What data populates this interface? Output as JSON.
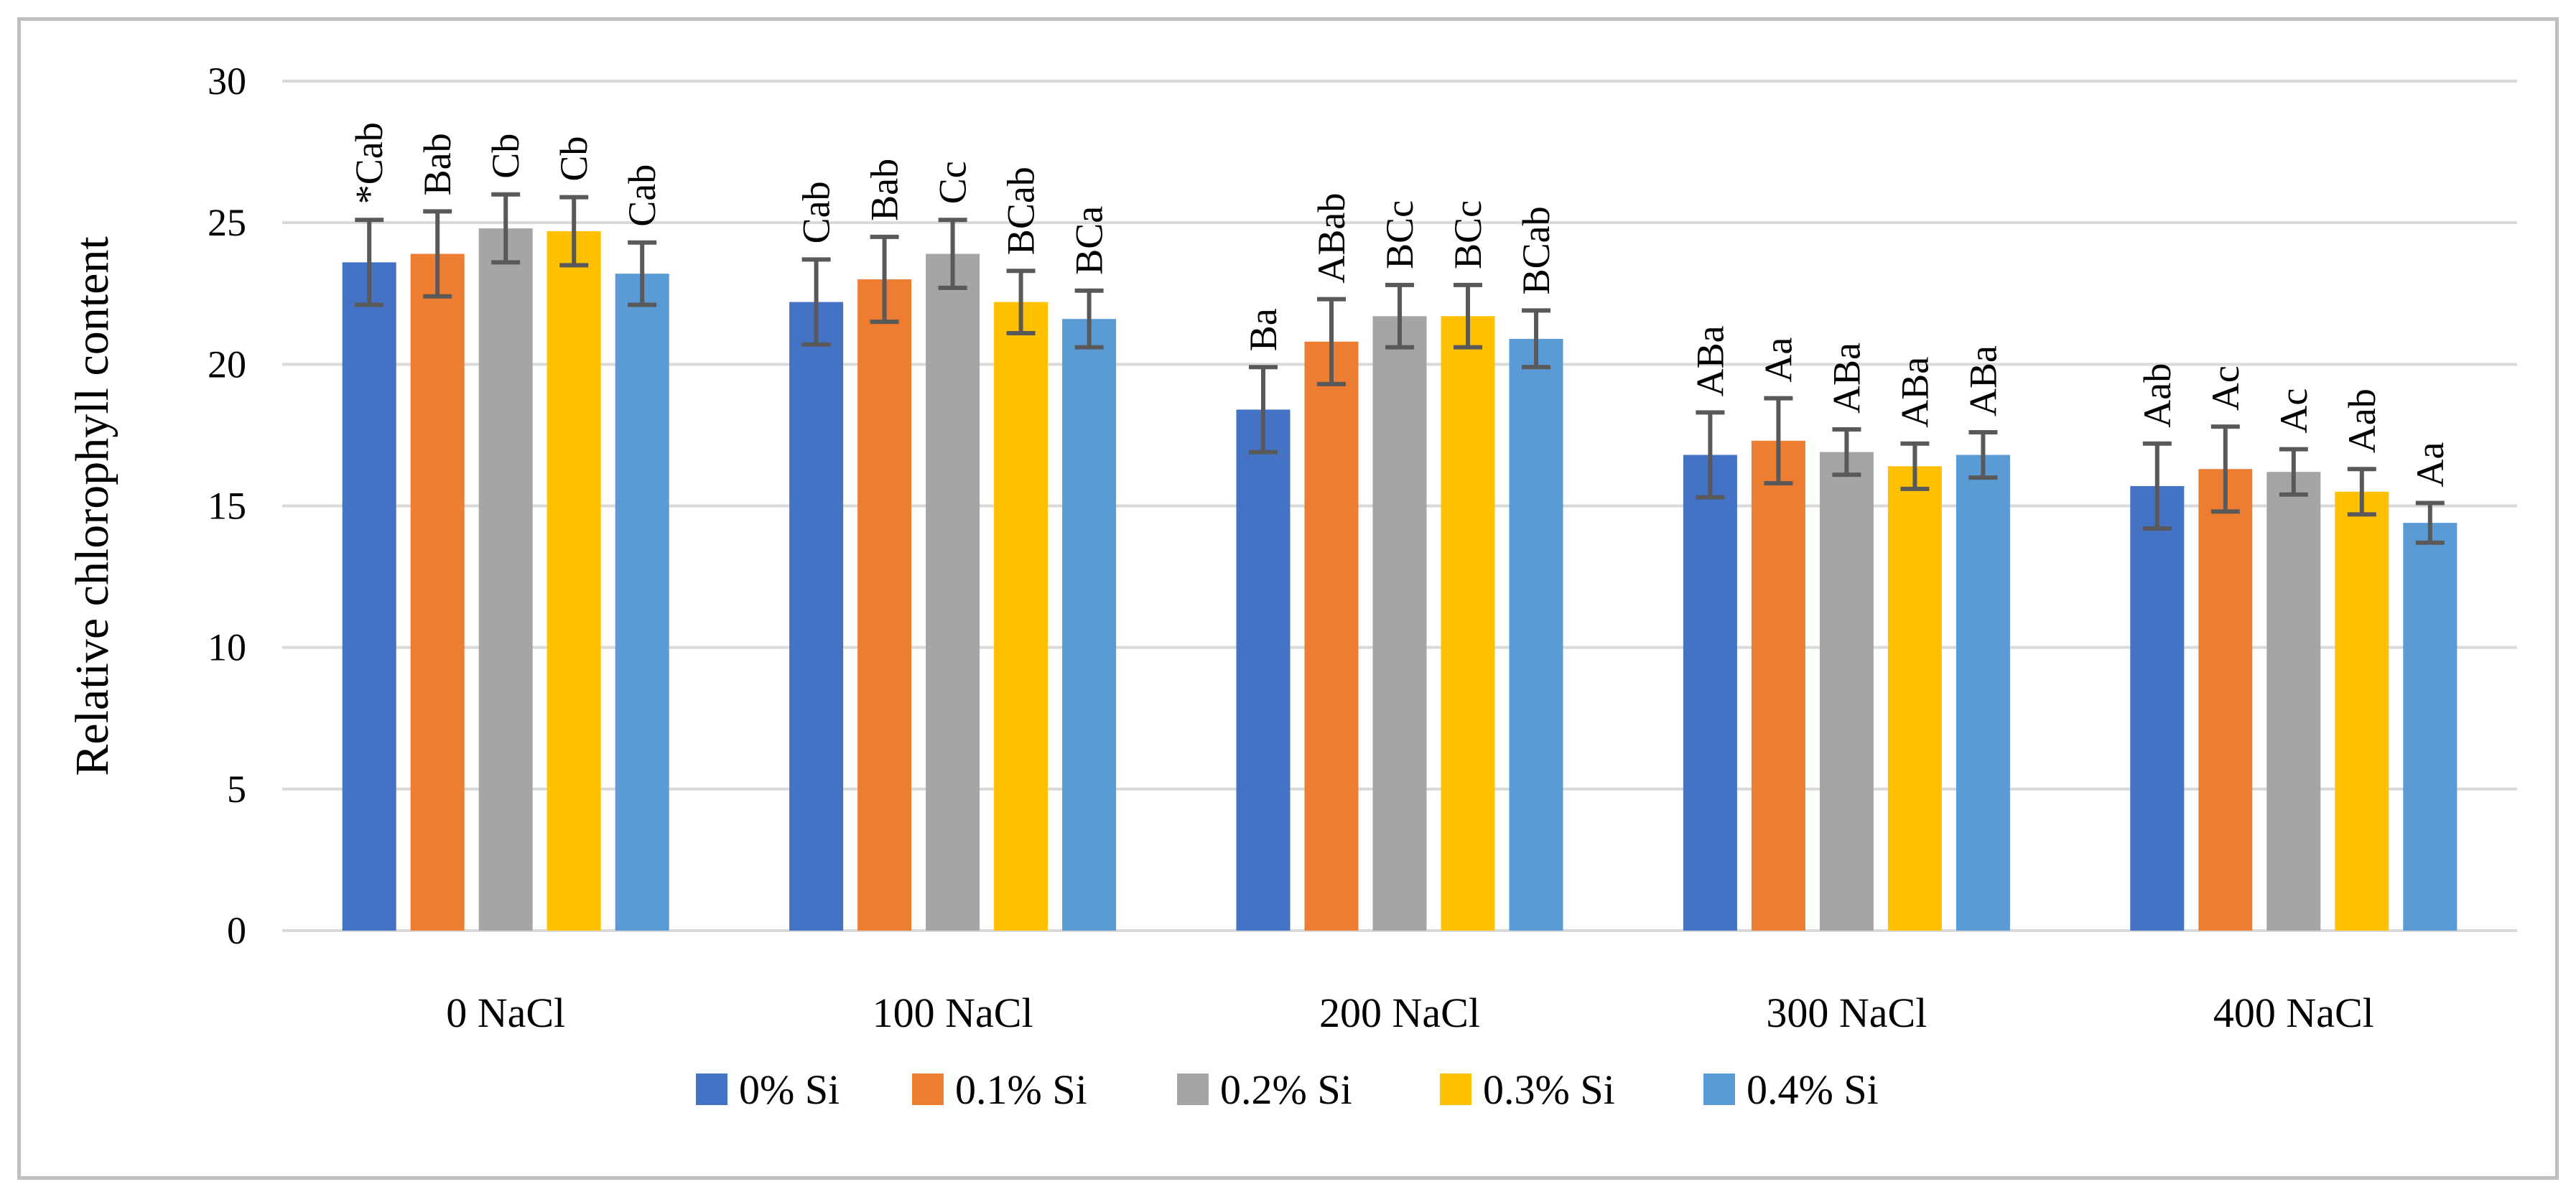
{
  "chart_data": {
    "type": "bar",
    "title": "",
    "xlabel": "",
    "ylabel": "Relative chlorophyll content",
    "ylim": [
      0,
      30
    ],
    "yticks": [
      0,
      5,
      10,
      15,
      20,
      25,
      30
    ],
    "grid": true,
    "legend_position": "bottom",
    "categories": [
      "0 NaCl",
      "100 NaCl",
      "200 NaCl",
      "300 NaCl",
      "400 NaCl"
    ],
    "series": [
      {
        "name": "0% Si",
        "color": "#4472C4",
        "values": [
          23.6,
          22.2,
          18.4,
          16.8,
          15.7
        ],
        "errors": [
          1.5,
          1.5,
          1.5,
          1.5,
          1.5
        ],
        "labels": [
          "*Cab",
          "Cab",
          "Ba",
          "ABa",
          "Aab"
        ]
      },
      {
        "name": "0.1% Si",
        "color": "#ED7D31",
        "values": [
          23.9,
          23.0,
          20.8,
          17.3,
          16.3
        ],
        "errors": [
          1.5,
          1.5,
          1.5,
          1.5,
          1.5
        ],
        "labels": [
          "Bab",
          "Bab",
          "ABab",
          "Aa",
          "Ac"
        ]
      },
      {
        "name": "0.2% Si",
        "color": "#A5A5A5",
        "values": [
          24.8,
          23.9,
          21.7,
          16.9,
          16.2
        ],
        "errors": [
          1.2,
          1.2,
          1.1,
          0.8,
          0.8
        ],
        "labels": [
          "Cb",
          "Cc",
          "BCc",
          "ABa",
          "Ac"
        ]
      },
      {
        "name": "0.3% Si",
        "color": "#FFC000",
        "values": [
          24.7,
          22.2,
          21.7,
          16.4,
          15.5
        ],
        "errors": [
          1.2,
          1.1,
          1.1,
          0.8,
          0.8
        ],
        "labels": [
          "Cb",
          "BCab",
          "BCc",
          "ABa",
          "Aab"
        ]
      },
      {
        "name": "0.4% Si",
        "color": "#5B9BD5",
        "values": [
          23.2,
          21.6,
          20.9,
          16.8,
          14.4
        ],
        "errors": [
          1.1,
          1.0,
          1.0,
          0.8,
          0.7
        ],
        "labels": [
          "Cab",
          "BCa",
          "BCab",
          "ABa",
          "Aa"
        ]
      }
    ]
  }
}
